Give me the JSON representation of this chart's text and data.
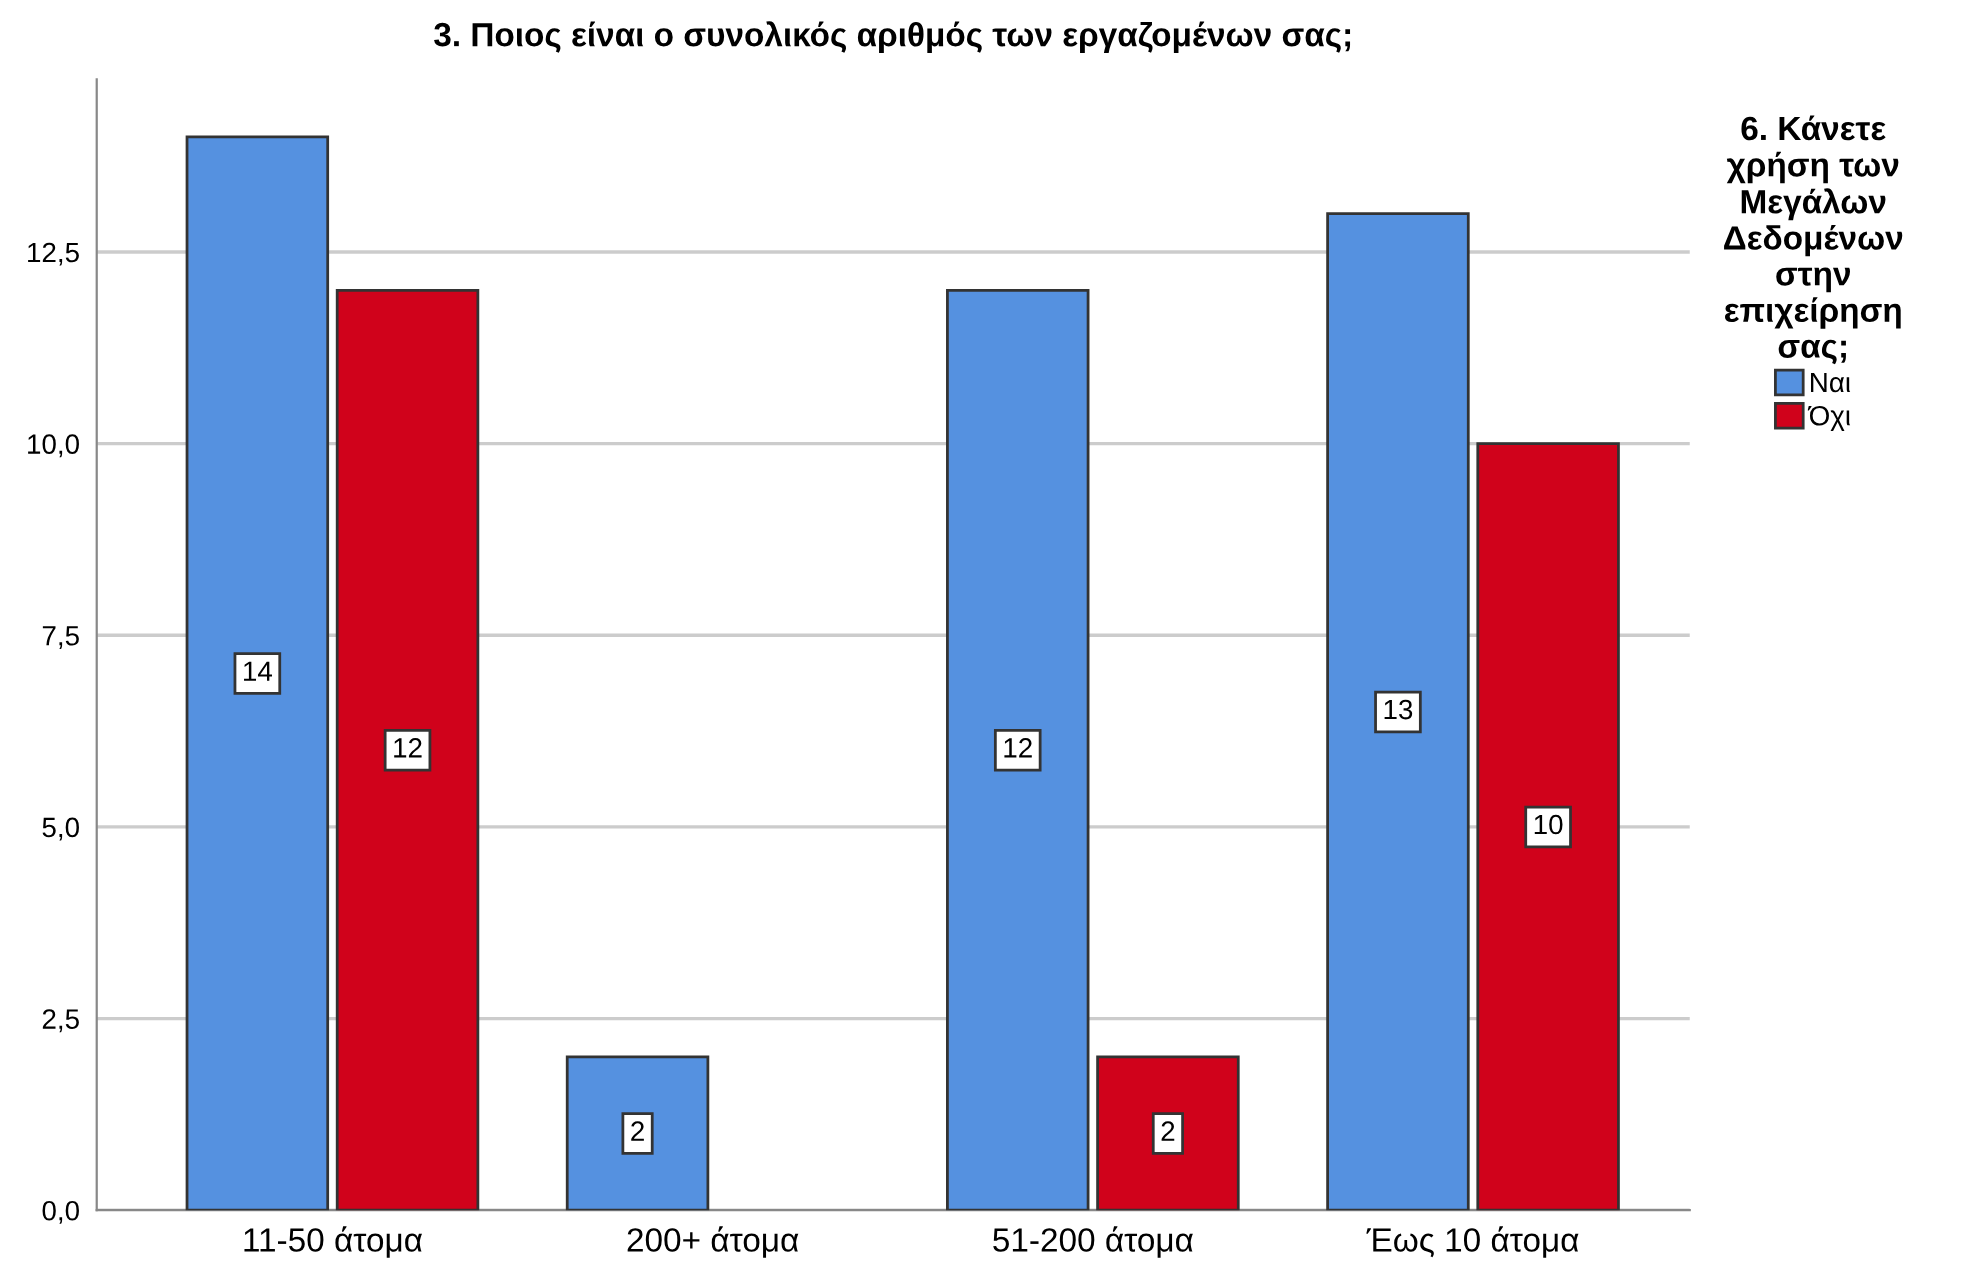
{
  "chart_data": {
    "type": "bar",
    "title": "3. Ποιος είναι ο συνολικός αριθμός των εργαζομένων σας;",
    "legend_title": "6. Κάνετε\nχρήση των\nΜεγάλων\nΔεδομένων\nστην\nεπιχείρηση\nσας;",
    "categories": [
      "11-50 άτομα",
      "200+ άτομα",
      "51-200 άτομα",
      "Έως 10 άτομα"
    ],
    "series": [
      {
        "name": "Ναι",
        "color": "#5591e0",
        "values": [
          14,
          2,
          12,
          13
        ]
      },
      {
        "name": "Όχι",
        "color": "#d0021b",
        "values": [
          12,
          null,
          2,
          10
        ]
      }
    ],
    "ylim": [
      0,
      14.75
    ],
    "yticks": [
      {
        "value": 0,
        "label": "0,0"
      },
      {
        "value": 2.5,
        "label": "2,5"
      },
      {
        "value": 5,
        "label": "5,0"
      },
      {
        "value": 7.5,
        "label": "7,5"
      },
      {
        "value": 10,
        "label": "10,0"
      },
      {
        "value": 12.5,
        "label": "12,5"
      }
    ],
    "grid": "y",
    "legend": "right",
    "data_labels": true
  }
}
